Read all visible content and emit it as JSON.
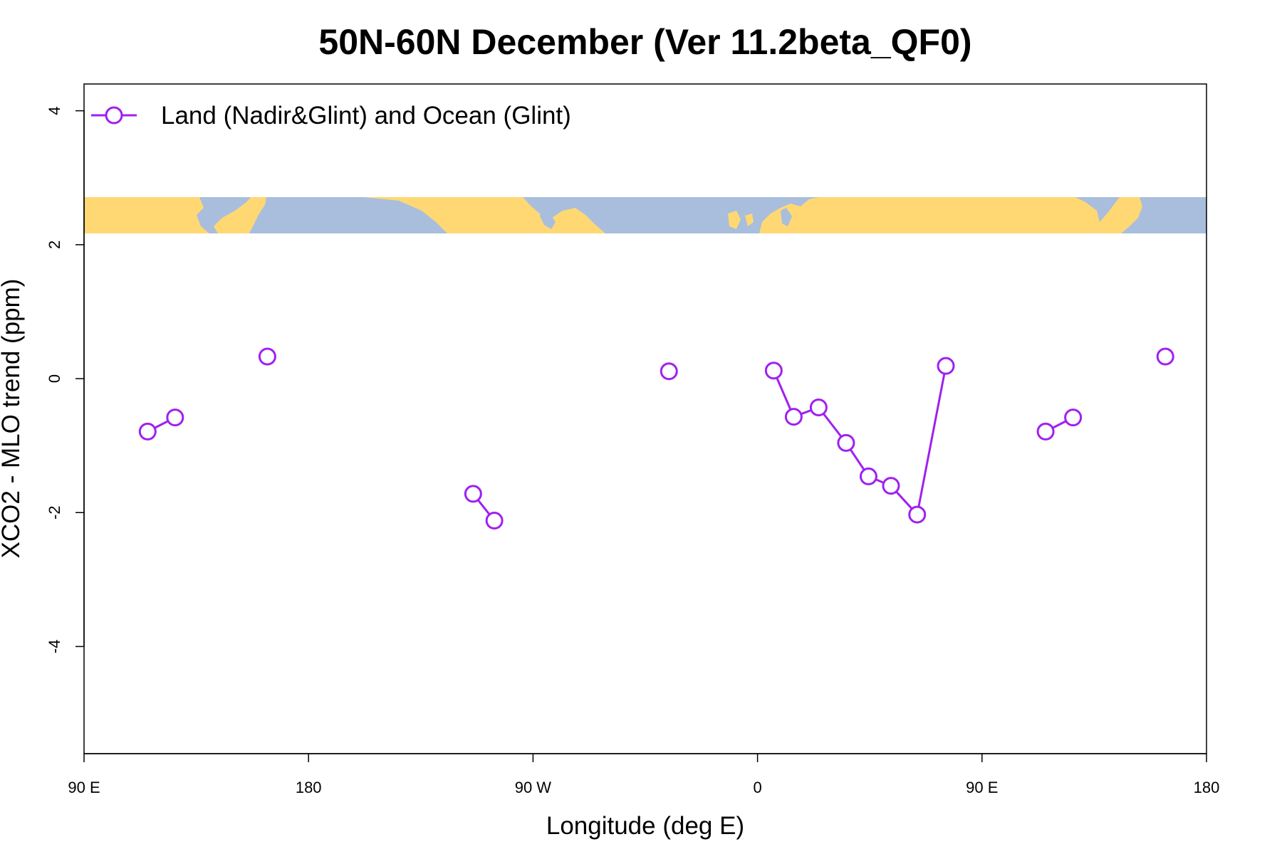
{
  "chart_data": {
    "type": "line",
    "title": "50N-60N December (Ver 11.2beta_QF0)",
    "xlabel": "Longitude (deg E)",
    "ylabel": "XCO2 - MLO trend (ppm)",
    "xlim": [
      90,
      540
    ],
    "ylim": [
      -5.6,
      4.4
    ],
    "x_ticks": [
      {
        "value": 90,
        "label": "90 E"
      },
      {
        "value": 180,
        "label": "180"
      },
      {
        "value": 270,
        "label": "90 W"
      },
      {
        "value": 360,
        "label": "0"
      },
      {
        "value": 450,
        "label": "90 E"
      },
      {
        "value": 540,
        "label": "180"
      }
    ],
    "y_ticks": [
      {
        "value": 4,
        "label": "4"
      },
      {
        "value": 2,
        "label": "2"
      },
      {
        "value": 0,
        "label": "0"
      },
      {
        "value": -2,
        "label": "-2"
      },
      {
        "value": -4,
        "label": "-4"
      }
    ],
    "grid": false,
    "legend_position": "top-left",
    "map_strip_range": [
      2.2,
      2.75
    ],
    "series": [
      {
        "name": "Land (Nadir&Glint) and Ocean (Glint)",
        "color": "#A020F0",
        "segments": [
          [
            {
              "x": 115.5,
              "y": -0.79
            },
            {
              "x": 126.5,
              "y": -0.58
            }
          ],
          [
            {
              "x": 163.5,
              "y": 0.33
            }
          ],
          [
            {
              "x": 246,
              "y": -1.72
            },
            {
              "x": 254.5,
              "y": -2.12
            }
          ],
          [
            {
              "x": 324.5,
              "y": 0.11
            }
          ],
          [
            {
              "x": 366.5,
              "y": 0.12
            },
            {
              "x": 374.5,
              "y": -0.57
            },
            {
              "x": 384.5,
              "y": -0.43
            },
            {
              "x": 395.5,
              "y": -0.96
            },
            {
              "x": 404.5,
              "y": -1.46
            },
            {
              "x": 413.5,
              "y": -1.6
            },
            {
              "x": 424,
              "y": -2.03
            },
            {
              "x": 435.5,
              "y": 0.19
            }
          ],
          [
            {
              "x": 475.5,
              "y": -0.79
            },
            {
              "x": 486.5,
              "y": -0.58
            }
          ],
          [
            {
              "x": 523.5,
              "y": 0.33
            }
          ]
        ]
      }
    ]
  }
}
